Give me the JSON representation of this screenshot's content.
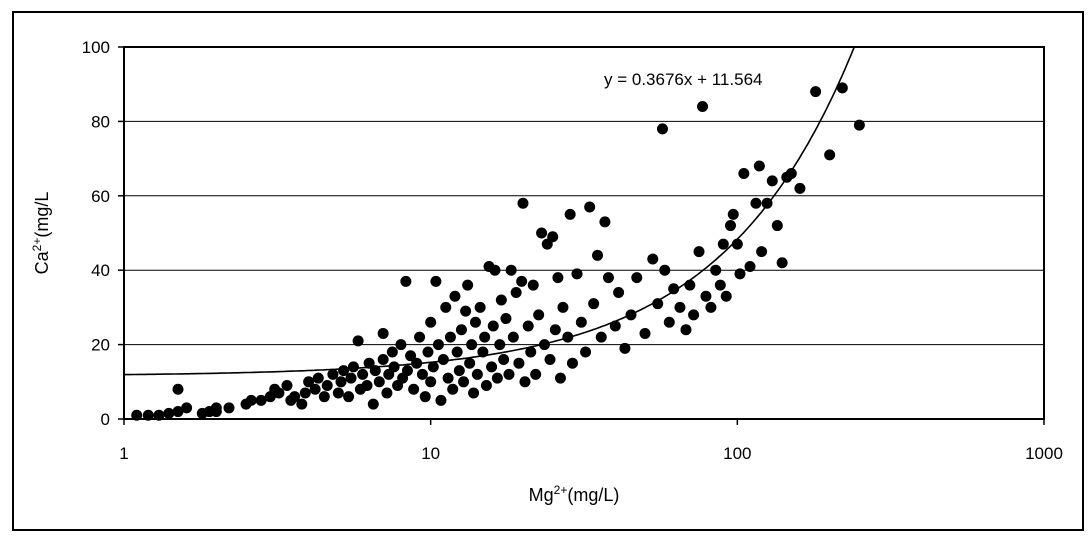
{
  "chart_data": {
    "type": "scatter",
    "title": "",
    "xlabel": "Mg",
    "xlabel_sup": "2+",
    "xlabel_unit": "(mg/L)",
    "ylabel": "Ca",
    "ylabel_sup": "2+",
    "ylabel_unit": "(mg/L",
    "xscale": "log",
    "xlim": [
      1,
      1000
    ],
    "ylim": [
      0,
      100
    ],
    "x_ticks": [
      1,
      10,
      100,
      1000
    ],
    "x_tick_labels": [
      "1",
      "10",
      "100",
      "1000"
    ],
    "y_ticks": [
      0,
      20,
      40,
      60,
      80,
      100
    ],
    "y_tick_labels": [
      "0",
      "20",
      "40",
      "60",
      "80",
      "100"
    ],
    "grid": "horizontal",
    "legend": "none",
    "marker_color": "#000000",
    "trendline": {
      "slope": 0.3676,
      "intercept": 11.564,
      "label": "y = 0.3676x + 11.564"
    },
    "points": [
      [
        1.1,
        1
      ],
      [
        1.2,
        1
      ],
      [
        1.3,
        1
      ],
      [
        1.4,
        1.5
      ],
      [
        1.5,
        2
      ],
      [
        1.5,
        8
      ],
      [
        1.6,
        3
      ],
      [
        1.8,
        1.5
      ],
      [
        1.9,
        2
      ],
      [
        2.0,
        2
      ],
      [
        2.0,
        3
      ],
      [
        2.2,
        3
      ],
      [
        2.5,
        4
      ],
      [
        2.6,
        5
      ],
      [
        2.8,
        5
      ],
      [
        3.0,
        6
      ],
      [
        3.1,
        8
      ],
      [
        3.2,
        7
      ],
      [
        3.4,
        9
      ],
      [
        3.5,
        5
      ],
      [
        3.6,
        6
      ],
      [
        3.8,
        4
      ],
      [
        3.9,
        7
      ],
      [
        4.0,
        10
      ],
      [
        4.2,
        8
      ],
      [
        4.3,
        11
      ],
      [
        4.5,
        6
      ],
      [
        4.6,
        9
      ],
      [
        4.8,
        12
      ],
      [
        5.0,
        7
      ],
      [
        5.1,
        10
      ],
      [
        5.2,
        13
      ],
      [
        5.4,
        6
      ],
      [
        5.5,
        11
      ],
      [
        5.6,
        14
      ],
      [
        5.8,
        21
      ],
      [
        5.9,
        8
      ],
      [
        6.0,
        12
      ],
      [
        6.2,
        9
      ],
      [
        6.3,
        15
      ],
      [
        6.5,
        4
      ],
      [
        6.6,
        13
      ],
      [
        6.8,
        10
      ],
      [
        7.0,
        16
      ],
      [
        7.0,
        23
      ],
      [
        7.2,
        7
      ],
      [
        7.3,
        12
      ],
      [
        7.5,
        18
      ],
      [
        7.6,
        14
      ],
      [
        7.8,
        9
      ],
      [
        8.0,
        20
      ],
      [
        8.1,
        11
      ],
      [
        8.3,
        37
      ],
      [
        8.4,
        13
      ],
      [
        8.6,
        17
      ],
      [
        8.8,
        8
      ],
      [
        9.0,
        15
      ],
      [
        9.2,
        22
      ],
      [
        9.4,
        12
      ],
      [
        9.6,
        6
      ],
      [
        9.8,
        18
      ],
      [
        10,
        10
      ],
      [
        10,
        26
      ],
      [
        10.2,
        14
      ],
      [
        10.4,
        37
      ],
      [
        10.6,
        20
      ],
      [
        10.8,
        5
      ],
      [
        11,
        16
      ],
      [
        11.2,
        30
      ],
      [
        11.4,
        11
      ],
      [
        11.6,
        22
      ],
      [
        11.8,
        8
      ],
      [
        12,
        33
      ],
      [
        12.2,
        18
      ],
      [
        12.4,
        13
      ],
      [
        12.6,
        24
      ],
      [
        12.8,
        10
      ],
      [
        13,
        29
      ],
      [
        13.2,
        36
      ],
      [
        13.4,
        15
      ],
      [
        13.6,
        20
      ],
      [
        13.8,
        7
      ],
      [
        14,
        26
      ],
      [
        14.2,
        12
      ],
      [
        14.5,
        30
      ],
      [
        14.8,
        18
      ],
      [
        15,
        22
      ],
      [
        15.2,
        9
      ],
      [
        15.5,
        41
      ],
      [
        15.8,
        14
      ],
      [
        16,
        25
      ],
      [
        16.2,
        40
      ],
      [
        16.5,
        11
      ],
      [
        16.8,
        20
      ],
      [
        17,
        32
      ],
      [
        17.3,
        16
      ],
      [
        17.6,
        27
      ],
      [
        18,
        12
      ],
      [
        18.3,
        40
      ],
      [
        18.6,
        22
      ],
      [
        19,
        34
      ],
      [
        19.4,
        15
      ],
      [
        19.8,
        37
      ],
      [
        20,
        58
      ],
      [
        20.3,
        10
      ],
      [
        20.8,
        25
      ],
      [
        21.2,
        18
      ],
      [
        21.6,
        36
      ],
      [
        22,
        12
      ],
      [
        22.5,
        28
      ],
      [
        23,
        50
      ],
      [
        23.5,
        20
      ],
      [
        24,
        47
      ],
      [
        24.5,
        16
      ],
      [
        25,
        49
      ],
      [
        25.5,
        24
      ],
      [
        26,
        38
      ],
      [
        26.5,
        11
      ],
      [
        27,
        30
      ],
      [
        28,
        22
      ],
      [
        28.5,
        55
      ],
      [
        29,
        15
      ],
      [
        30,
        39
      ],
      [
        31,
        26
      ],
      [
        32,
        18
      ],
      [
        33,
        57
      ],
      [
        34,
        31
      ],
      [
        35,
        44
      ],
      [
        36,
        22
      ],
      [
        37,
        53
      ],
      [
        38,
        38
      ],
      [
        40,
        25
      ],
      [
        41,
        34
      ],
      [
        43,
        19
      ],
      [
        45,
        28
      ],
      [
        47,
        38
      ],
      [
        50,
        23
      ],
      [
        53,
        43
      ],
      [
        55,
        31
      ],
      [
        57,
        78
      ],
      [
        58,
        40
      ],
      [
        60,
        26
      ],
      [
        62,
        35
      ],
      [
        65,
        30
      ],
      [
        68,
        24
      ],
      [
        70,
        36
      ],
      [
        72,
        28
      ],
      [
        75,
        45
      ],
      [
        77,
        84
      ],
      [
        79,
        33
      ],
      [
        82,
        30
      ],
      [
        85,
        40
      ],
      [
        88,
        36
      ],
      [
        90,
        47
      ],
      [
        92,
        33
      ],
      [
        95,
        52
      ],
      [
        97,
        55
      ],
      [
        100,
        47
      ],
      [
        102,
        39
      ],
      [
        105,
        66
      ],
      [
        110,
        41
      ],
      [
        115,
        58
      ],
      [
        118,
        68
      ],
      [
        120,
        45
      ],
      [
        125,
        58
      ],
      [
        130,
        64
      ],
      [
        135,
        52
      ],
      [
        140,
        42
      ],
      [
        145,
        65
      ],
      [
        150,
        66
      ],
      [
        160,
        62
      ],
      [
        180,
        88
      ],
      [
        200,
        71
      ],
      [
        220,
        89
      ],
      [
        250,
        79
      ]
    ]
  }
}
